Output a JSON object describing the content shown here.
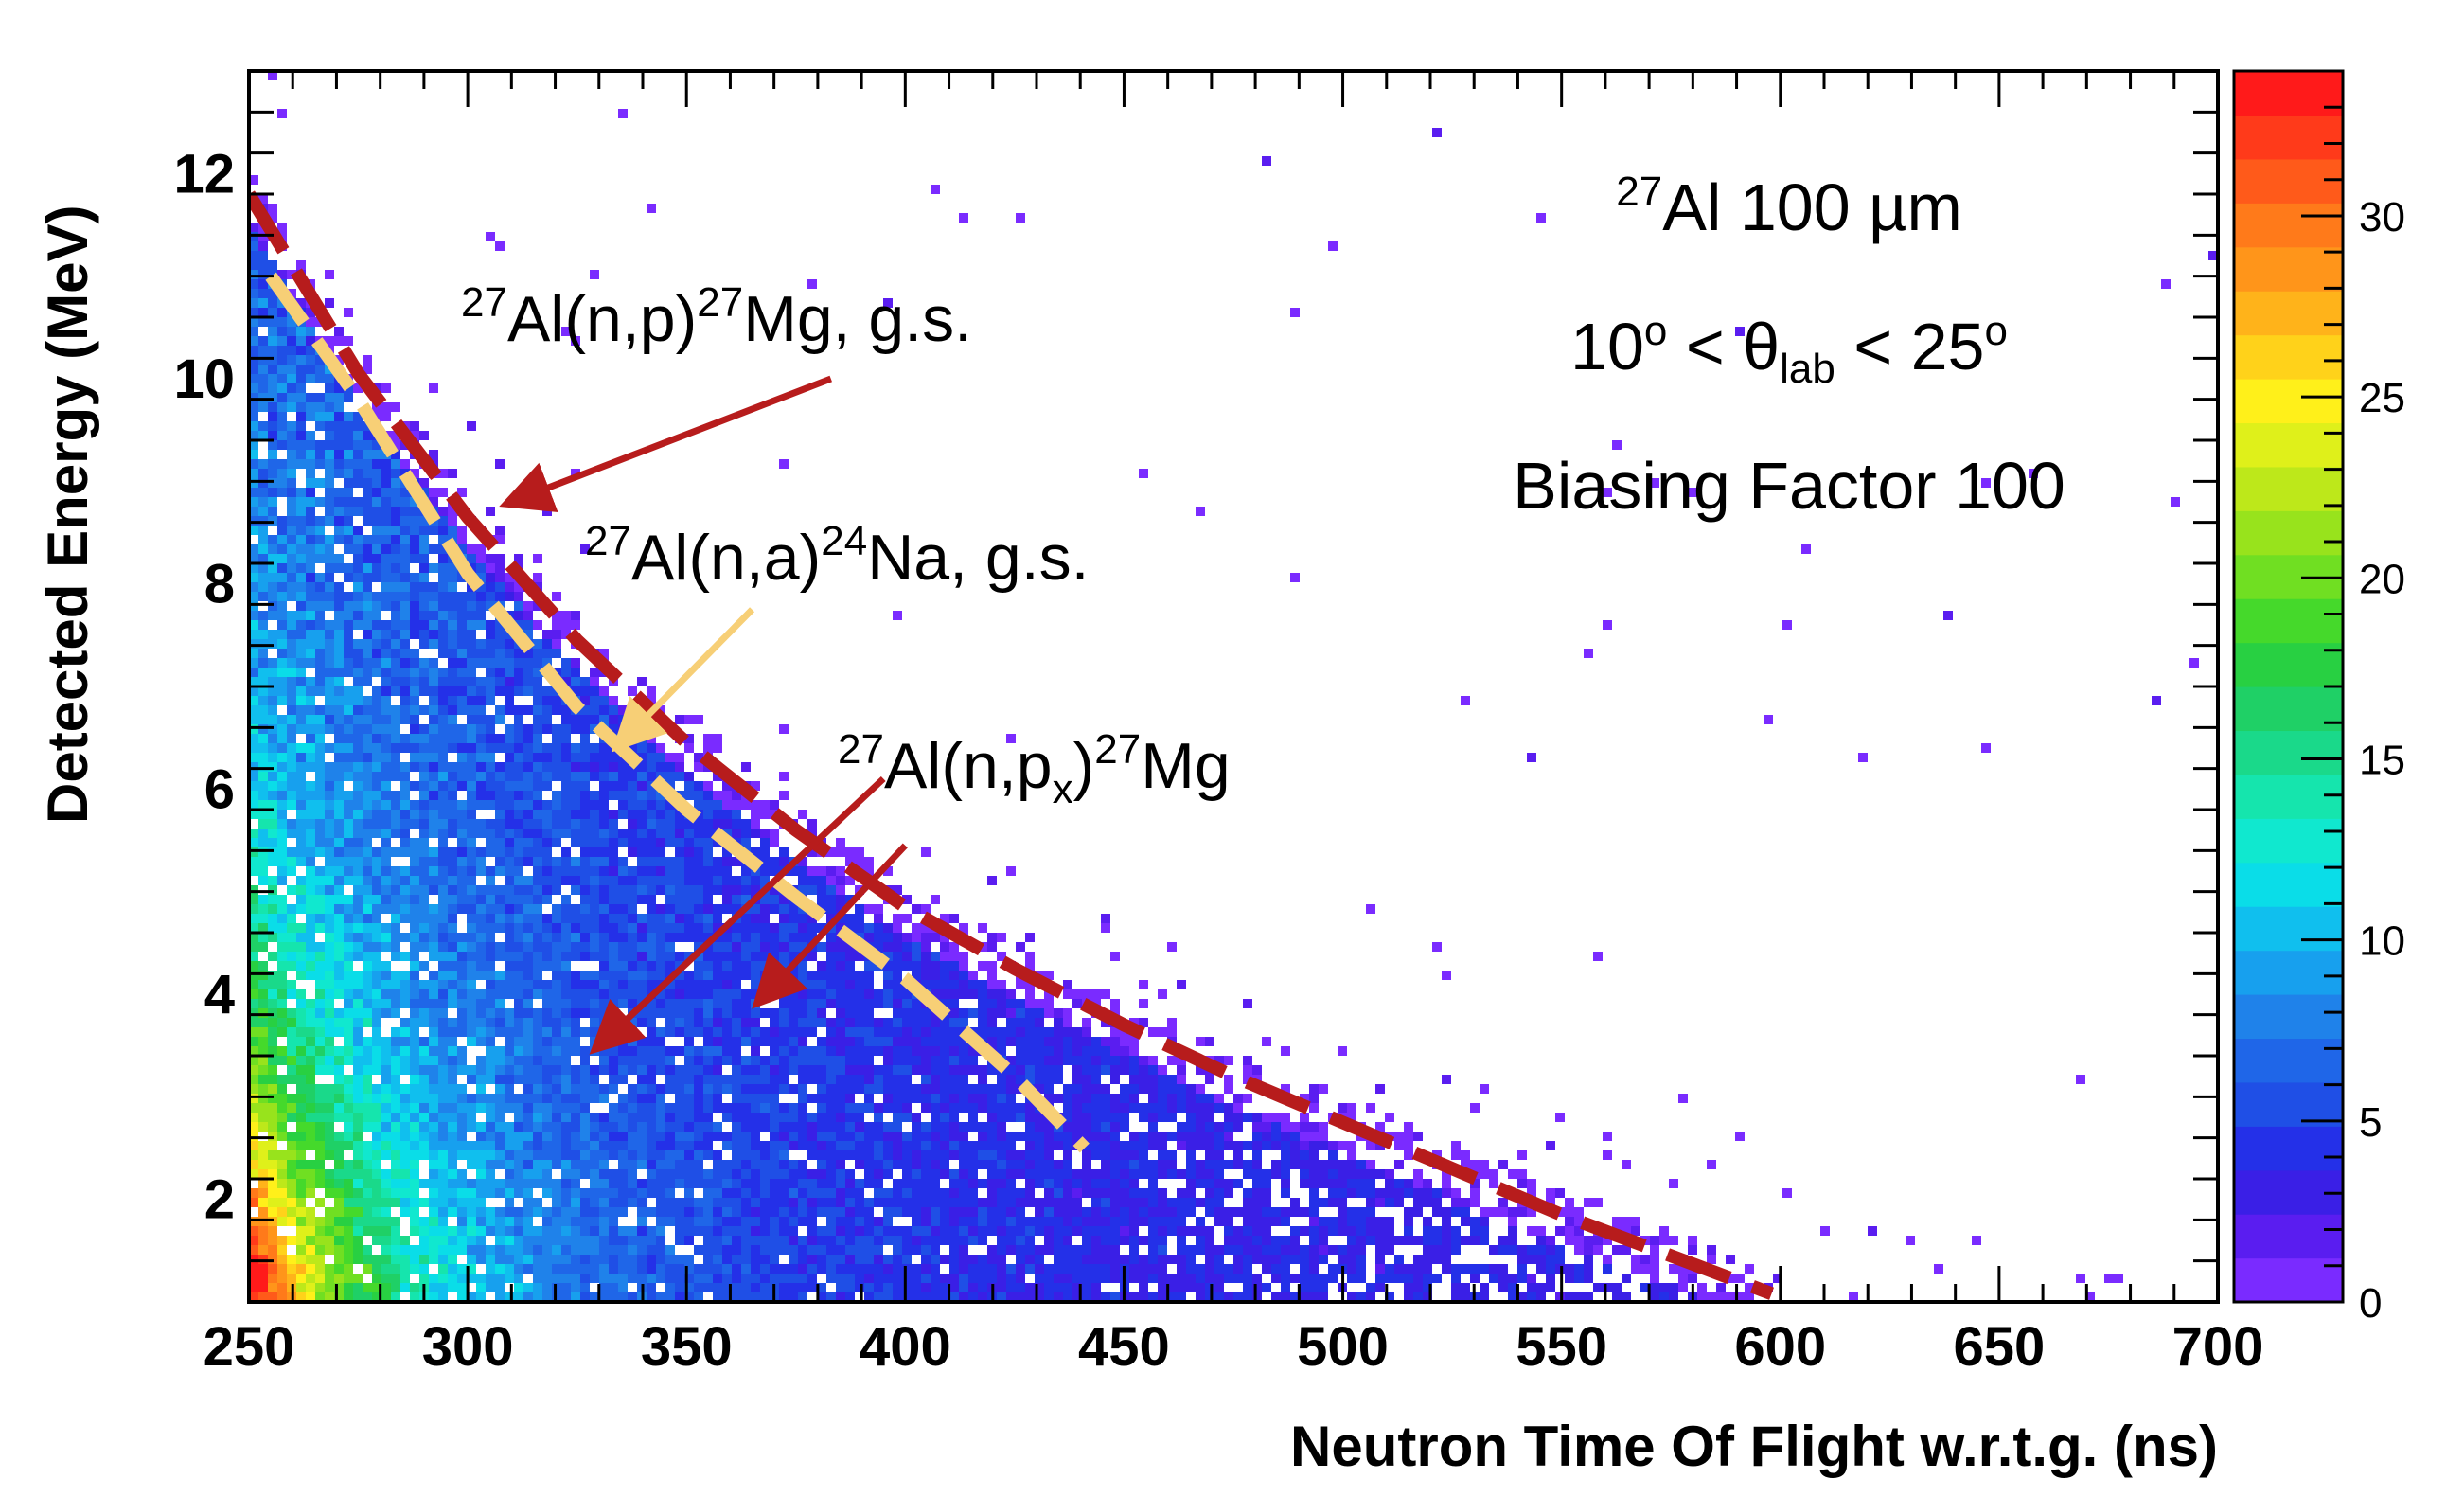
{
  "chart_data": {
    "type": "heatmap",
    "xlabel": "Neutron Time Of Flight w.r.t.g. (ns)",
    "ylabel": "Detected Energy (MeV)",
    "xlim": [
      250,
      700
    ],
    "ylim": [
      1.0,
      13.0
    ],
    "x_ticks": [
      250,
      300,
      350,
      400,
      450,
      500,
      550,
      600,
      650,
      700
    ],
    "y_ticks": [
      2,
      4,
      6,
      8,
      10,
      12
    ],
    "colorbar": {
      "range": [
        0,
        34
      ],
      "ticks": [
        0,
        5,
        10,
        15,
        20,
        25,
        30
      ],
      "colors": [
        "#7a2bff",
        "#5a1df0",
        "#3a1fe6",
        "#2430e8",
        "#1f4fe6",
        "#1f66e8",
        "#1f82ea",
        "#17a0ee",
        "#10bfee",
        "#0adde8",
        "#10e8cf",
        "#15e5ad",
        "#1ad98a",
        "#1fd066",
        "#28d042",
        "#45d92b",
        "#70df22",
        "#98e31c",
        "#bde81a",
        "#dff01a",
        "#fff01a",
        "#ffd21a",
        "#ffb31a",
        "#ff951a",
        "#ff7a1a",
        "#ff5a1a",
        "#ff3a1a",
        "#ff1a1a"
      ]
    },
    "curves": [
      {
        "name": "27Al(n,p)27Mg, g.s.",
        "color": "#b71c1c",
        "style": "dashed",
        "x": [
          250,
          275,
          300,
          325,
          350,
          375,
          400,
          425,
          450,
          475,
          500,
          525,
          550,
          575,
          598
        ],
        "y": [
          11.8,
          10.05,
          8.65,
          7.45,
          6.45,
          5.6,
          4.85,
          4.25,
          3.7,
          3.2,
          2.75,
          2.3,
          1.85,
          1.45,
          1.08
        ]
      },
      {
        "name": "27Al(n,a)24Na, g.s.",
        "color": "#f7cf76",
        "style": "dashed",
        "x": [
          255,
          275,
          300,
          325,
          350,
          375,
          400,
          425,
          441
        ],
        "y": [
          11.0,
          9.8,
          8.1,
          6.8,
          5.8,
          4.95,
          4.15,
          3.2,
          2.5
        ]
      }
    ],
    "annotations": [
      {
        "text": "27Al 100 µm"
      },
      {
        "text": "10o < θlab < 25o"
      },
      {
        "text": "Biasing Factor 100"
      },
      {
        "text": "27Al(n,p)27Mg, g.s."
      },
      {
        "text": "27Al(n,a)24Na, g.s."
      },
      {
        "text": "27Al(n,px)27Mg"
      }
    ],
    "arrows": [
      {
        "color": "#b71c1c",
        "from": [
          383,
          10.0
        ],
        "to": [
          310,
          8.8
        ]
      },
      {
        "color": "#f7cf76",
        "from": [
          365,
          7.75
        ],
        "to": [
          335,
          6.45
        ]
      },
      {
        "color": "#b71c1c",
        "from": [
          395,
          6.1
        ],
        "to": [
          330,
          3.5
        ]
      },
      {
        "color": "#b71c1c",
        "from": [
          400,
          5.45
        ],
        "to": [
          367,
          3.95
        ]
      }
    ]
  },
  "labels": {
    "panel_title": "Al 100 µm",
    "panel_title_sup": "27",
    "theta_pre": "10",
    "theta_sup1": "o",
    "theta_mid": " < θ",
    "theta_sub": "lab",
    "theta_post": " < 25",
    "theta_sup2": "o",
    "biasing": "Biasing Factor 100",
    "np_sup1": "27",
    "np_mid": "Al(n,p)",
    "np_sup2": "27",
    "np_end": "Mg, g.s.",
    "na_sup1": "27",
    "na_mid": "Al(n,a)",
    "na_sup2": "24",
    "na_end": "Na, g.s.",
    "npx_sup1": "27",
    "npx_mid": "Al(n,p",
    "npx_sub": "x",
    "npx_close": ")",
    "npx_sup2": "27",
    "npx_end": "Mg"
  }
}
